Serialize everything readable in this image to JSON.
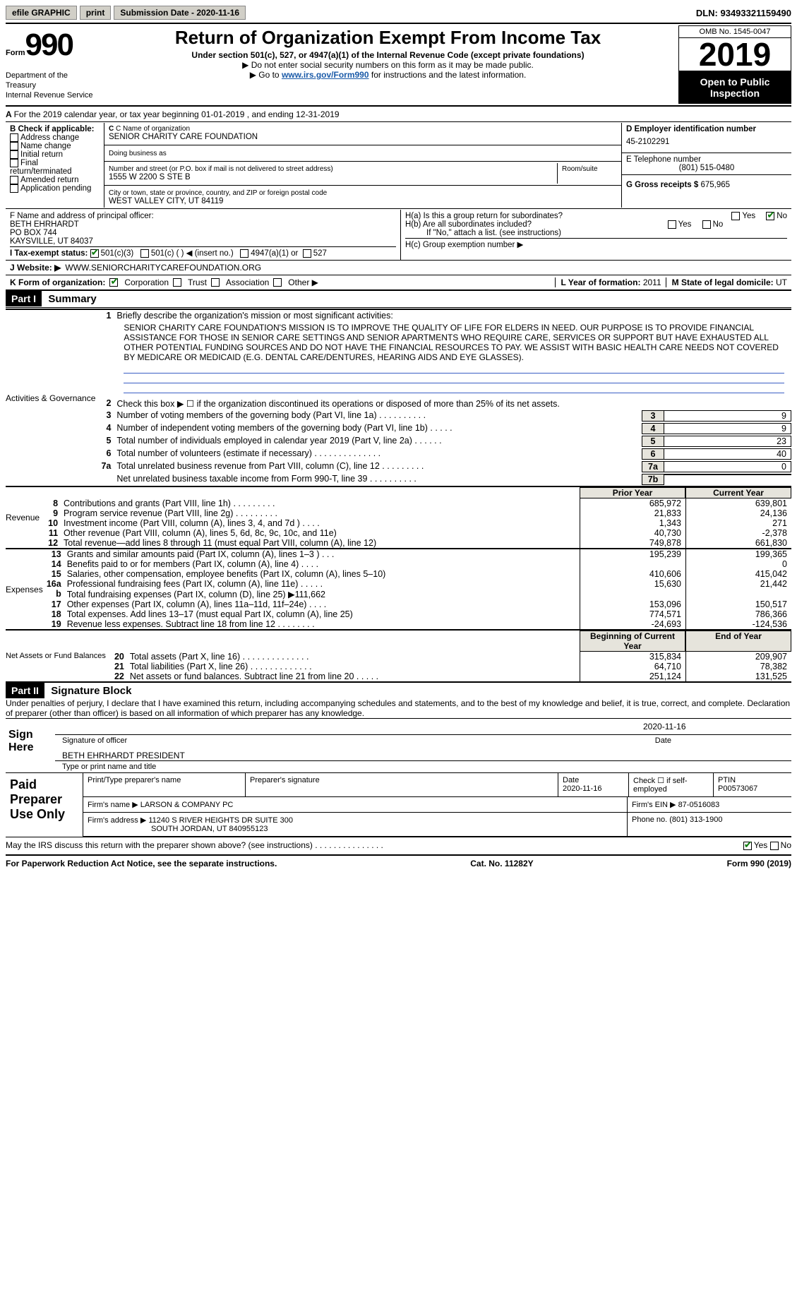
{
  "header": {
    "efile_label": "efile GRAPHIC",
    "print_btn": "print",
    "submission_label": "Submission Date - 2020-11-16",
    "dln_label": "DLN: 93493321159490"
  },
  "title_block": {
    "form_prefix": "Form",
    "form_number": "990",
    "dept": "Department of the Treasury\nInternal Revenue Service",
    "main_title": "Return of Organization Exempt From Income Tax",
    "sub1": "Under section 501(c), 527, or 4947(a)(1) of the Internal Revenue Code (except private foundations)",
    "sub2": "▶ Do not enter social security numbers on this form as it may be made public.",
    "sub3_pre": "▶ Go to ",
    "sub3_link": "www.irs.gov/Form990",
    "sub3_post": " for instructions and the latest information.",
    "omb": "OMB No. 1545-0047",
    "year": "2019",
    "open_pub": "Open to Public Inspection"
  },
  "row_a": {
    "text": "For the 2019 calendar year, or tax year beginning 01-01-2019    , and ending 12-31-2019"
  },
  "box_b": {
    "title": "B Check if applicable:",
    "opts": [
      "Address change",
      "Name change",
      "Initial return",
      "Final return/terminated",
      "Amended return",
      "Application pending"
    ]
  },
  "box_c": {
    "label_name": "C Name of organization",
    "name": "SENIOR CHARITY CARE FOUNDATION",
    "dba_label": "Doing business as",
    "dba": "",
    "addr_label": "Number and street (or P.O. box if mail is not delivered to street address)",
    "room_label": "Room/suite",
    "addr": "1555 W 2200 S STE B",
    "city_label": "City or town, state or province, country, and ZIP or foreign postal code",
    "city": "WEST VALLEY CITY, UT  84119"
  },
  "box_d": {
    "label": "D Employer identification number",
    "ein": "45-2102291"
  },
  "box_e": {
    "label": "E Telephone number",
    "phone": "(801) 515-0480"
  },
  "box_g": {
    "label": "G Gross receipts $",
    "amount": "675,965"
  },
  "box_f": {
    "label": "F  Name and address of principal officer:",
    "name": "BETH EHRHARDT",
    "addr1": "PO BOX 744",
    "addr2": "KAYSVILLE, UT  84037"
  },
  "box_h": {
    "ha": "H(a)  Is this a group return for subordinates?",
    "hb": "H(b)  Are all subordinates included?",
    "hb_note": "If \"No,\" attach a list. (see instructions)",
    "hc": "H(c)  Group exemption number ▶",
    "yes": "Yes",
    "no": "No"
  },
  "row_i": {
    "label": "I   Tax-exempt status:",
    "o1": "501(c)(3)",
    "o2": "501(c) (   ) ◀ (insert no.)",
    "o3": "4947(a)(1) or",
    "o4": "527"
  },
  "row_j": {
    "label": "J   Website: ▶",
    "url": "WWW.SENIORCHARITYCAREFOUNDATION.ORG"
  },
  "row_k": {
    "label": "K Form of organization:",
    "o1": "Corporation",
    "o2": "Trust",
    "o3": "Association",
    "o4": "Other ▶"
  },
  "row_l": {
    "label": "L Year of formation:",
    "val": "2011"
  },
  "row_m": {
    "label": "M State of legal domicile:",
    "val": "UT"
  },
  "part1": {
    "hdr": "Part I",
    "title": "Summary",
    "line1_label": "Briefly describe the organization's mission or most significant activities:",
    "mission": "SENIOR CHARITY CARE FOUNDATION'S MISSION IS TO IMPROVE THE QUALITY OF LIFE FOR ELDERS IN NEED. OUR PURPOSE IS TO PROVIDE FINANCIAL ASSISTANCE FOR THOSE IN SENIOR CARE SETTINGS AND SENIOR APARTMENTS WHO REQUIRE CARE, SERVICES OR SUPPORT BUT HAVE EXHAUSTED ALL OTHER POTENTIAL FUNDING SOURCES AND DO NOT HAVE THE FINANCIAL RESOURCES TO PAY. WE ASSIST WITH BASIC HEALTH CARE NEEDS NOT COVERED BY MEDICARE OR MEDICAID (E.G. DENTAL CARE/DENTURES, HEARING AIDS AND EYE GLASSES).",
    "line2": "Check this box ▶ ☐  if the organization discontinued its operations or disposed of more than 25% of its net assets.",
    "side_act": "Activities & Governance",
    "side_rev": "Revenue",
    "side_exp": "Expenses",
    "side_net": "Net Assets or Fund Balances",
    "rows_gov": [
      {
        "n": "3",
        "t": "Number of voting members of the governing body (Part VI, line 1a)  .   .   .   .   .   .   .   .   .   .",
        "b": "3",
        "v": "9"
      },
      {
        "n": "4",
        "t": "Number of independent voting members of the governing body (Part VI, line 1b)   .   .   .   .   .",
        "b": "4",
        "v": "9"
      },
      {
        "n": "5",
        "t": "Total number of individuals employed in calendar year 2019 (Part V, line 2a)   .   .   .   .   .   .",
        "b": "5",
        "v": "23"
      },
      {
        "n": "6",
        "t": "Total number of volunteers (estimate if necessary)   .   .   .   .   .   .   .   .   .   .   .   .   .   .",
        "b": "6",
        "v": "40"
      },
      {
        "n": "7a",
        "t": "Total unrelated business revenue from Part VIII, column (C), line 12   .   .   .   .   .   .   .   .   .",
        "b": "7a",
        "v": "0"
      },
      {
        "n": "",
        "t": "Net unrelated business taxable income from Form 990-T, line 39   .   .   .   .   .   .   .   .   .   .",
        "b": "7b",
        "v": ""
      }
    ],
    "hdr_prior": "Prior Year",
    "hdr_curr": "Current Year",
    "hdr_boy": "Beginning of Current Year",
    "hdr_eoy": "End of Year",
    "rows_rev": [
      {
        "n": "8",
        "t": "Contributions and grants (Part VIII, line 1h)   .   .   .   .   .   .   .   .   .",
        "c1": "685,972",
        "c2": "639,801"
      },
      {
        "n": "9",
        "t": "Program service revenue (Part VIII, line 2g)   .   .   .   .   .   .   .   .   .",
        "c1": "21,833",
        "c2": "24,136"
      },
      {
        "n": "10",
        "t": "Investment income (Part VIII, column (A), lines 3, 4, and 7d )   .   .   .   .",
        "c1": "1,343",
        "c2": "271"
      },
      {
        "n": "11",
        "t": "Other revenue (Part VIII, column (A), lines 5, 6d, 8c, 9c, 10c, and 11e)",
        "c1": "40,730",
        "c2": "-2,378"
      },
      {
        "n": "12",
        "t": "Total revenue—add lines 8 through 11 (must equal Part VIII, column (A), line 12)",
        "c1": "749,878",
        "c2": "661,830"
      }
    ],
    "rows_exp": [
      {
        "n": "13",
        "t": "Grants and similar amounts paid (Part IX, column (A), lines 1–3 )   .   .   .",
        "c1": "195,239",
        "c2": "199,365"
      },
      {
        "n": "14",
        "t": "Benefits paid to or for members (Part IX, column (A), line 4)   .   .   .   .",
        "c1": "",
        "c2": "0"
      },
      {
        "n": "15",
        "t": "Salaries, other compensation, employee benefits (Part IX, column (A), lines 5–10)",
        "c1": "410,606",
        "c2": "415,042"
      },
      {
        "n": "16a",
        "t": "Professional fundraising fees (Part IX, column (A), line 11e)   .   .   .   .   .",
        "c1": "15,630",
        "c2": "21,442"
      },
      {
        "n": "b",
        "t": "Total fundraising expenses (Part IX, column (D), line 25) ▶111,662",
        "c1": "",
        "c2": ""
      },
      {
        "n": "17",
        "t": "Other expenses (Part IX, column (A), lines 11a–11d, 11f–24e)   .   .   .   .",
        "c1": "153,096",
        "c2": "150,517"
      },
      {
        "n": "18",
        "t": "Total expenses. Add lines 13–17 (must equal Part IX, column (A), line 25)",
        "c1": "774,571",
        "c2": "786,366"
      },
      {
        "n": "19",
        "t": "Revenue less expenses. Subtract line 18 from line 12   .   .   .   .   .   .   .   .",
        "c1": "-24,693",
        "c2": "-124,536"
      }
    ],
    "rows_net": [
      {
        "n": "20",
        "t": "Total assets (Part X, line 16)   .   .   .   .   .   .   .   .   .   .   .   .   .   .",
        "c1": "315,834",
        "c2": "209,907"
      },
      {
        "n": "21",
        "t": "Total liabilities (Part X, line 26)   .   .   .   .   .   .   .   .   .   .   .   .   .",
        "c1": "64,710",
        "c2": "78,382"
      },
      {
        "n": "22",
        "t": "Net assets or fund balances. Subtract line 21 from line 20   .   .   .   .   .",
        "c1": "251,124",
        "c2": "131,525"
      }
    ]
  },
  "part2": {
    "hdr": "Part II",
    "title": "Signature Block",
    "perjury": "Under penalties of perjury, I declare that I have examined this return, including accompanying schedules and statements, and to the best of my knowledge and belief, it is true, correct, and complete. Declaration of preparer (other than officer) is based on all information of which preparer has any knowledge.",
    "sign_here": "Sign Here",
    "sig_officer": "Signature of officer",
    "sig_date": "2020-11-16",
    "officer_name": "BETH EHRHARDT  PRESIDENT",
    "type_or_print": "Type or print name and title",
    "paid_prep": "Paid Preparer Use Only",
    "prep_name_lbl": "Print/Type preparer's name",
    "prep_sig_lbl": "Preparer's signature",
    "date_lbl": "Date",
    "date_val": "2020-11-16",
    "check_self": "Check ☐ if self-employed",
    "ptin_lbl": "PTIN",
    "ptin": "P00573067",
    "firm_name_lbl": "Firm's name    ▶",
    "firm_name": "LARSON & COMPANY PC",
    "firm_ein_lbl": "Firm's EIN ▶",
    "firm_ein": "87-0516083",
    "firm_addr_lbl": "Firm's address ▶",
    "firm_addr1": "11240 S RIVER HEIGHTS DR SUITE 300",
    "firm_addr2": "SOUTH JORDAN, UT  840955123",
    "phone_lbl": "Phone no.",
    "phone": "(801) 313-1900",
    "discuss": "May the IRS discuss this return with the preparer shown above? (see instructions)   .   .   .   .   .   .   .   .   .   .   .   .   .   .   .",
    "yes": "Yes",
    "no": "No"
  },
  "footer": {
    "left": "For Paperwork Reduction Act Notice, see the separate instructions.",
    "mid": "Cat. No. 11282Y",
    "right": "Form 990 (2019)"
  }
}
